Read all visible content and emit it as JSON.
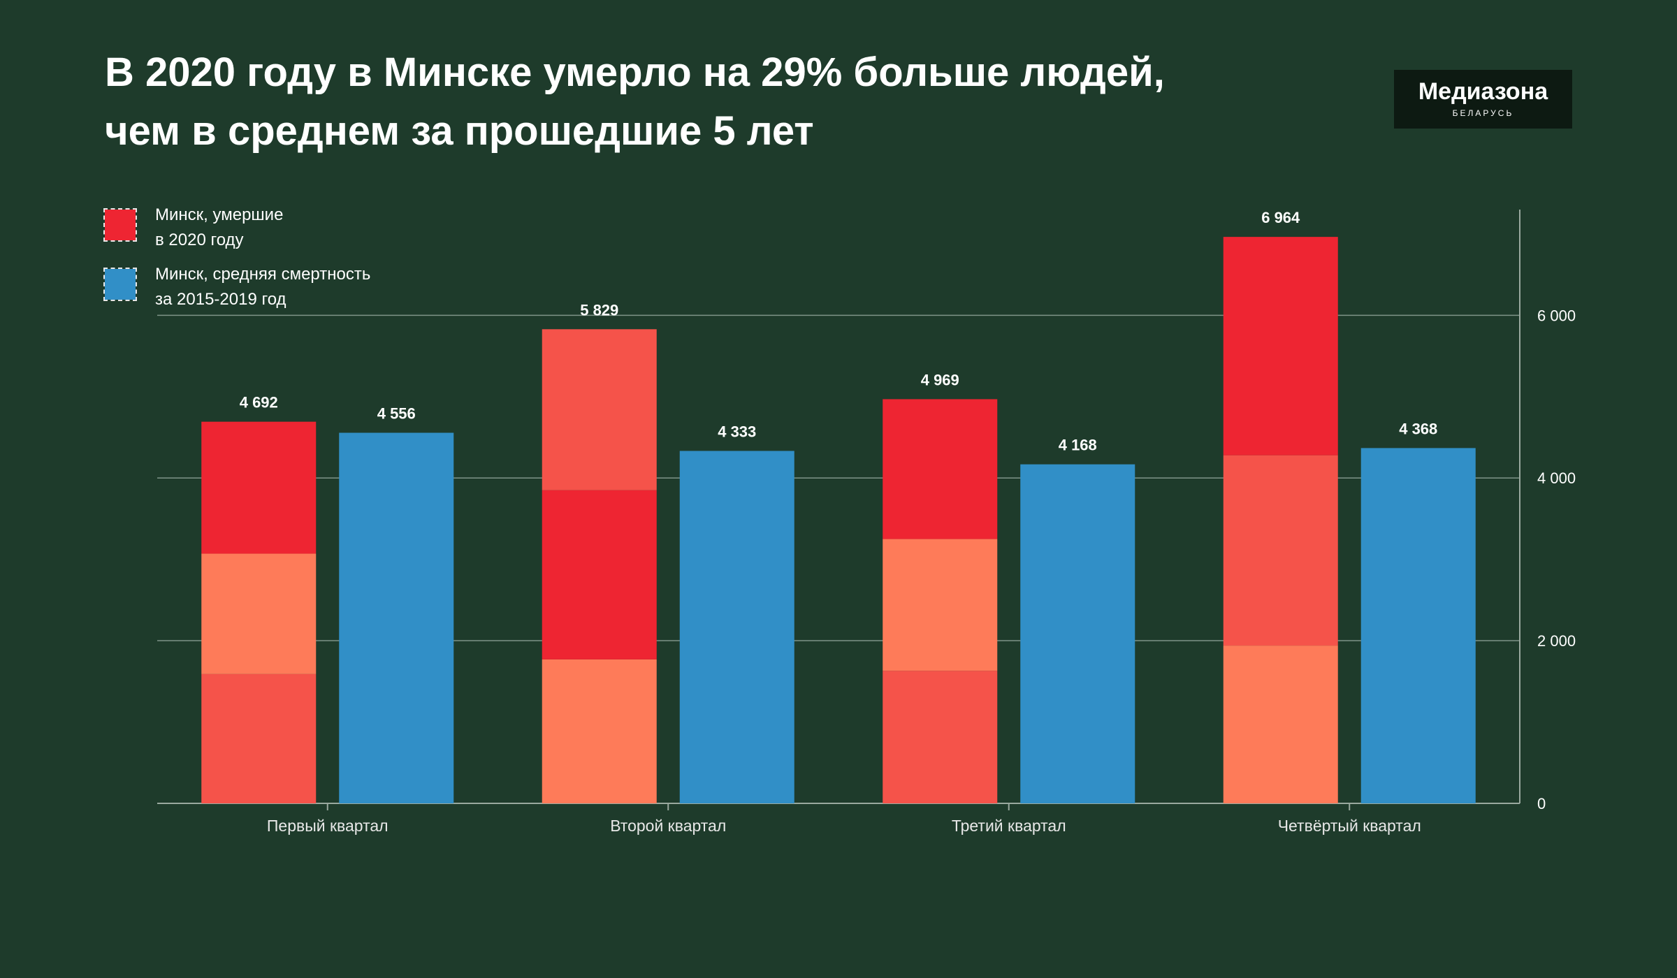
{
  "title": {
    "line1": "В 2020 году в Минске умерло на 29% больше людей,",
    "line2": "чем в среднем за прошедшие 5 лет"
  },
  "logo": {
    "name": "Медиазона",
    "subtitle": "БЕЛАРУСЬ"
  },
  "legend": [
    {
      "line1": "Минск, умершие",
      "line2": "в 2020 году",
      "color": "#ee2532"
    },
    {
      "line1": "Минск, средняя смертность",
      "line2": "за 2015-2019 год",
      "color": "#318fc7"
    }
  ],
  "colors": {
    "background": "#1e3b2b",
    "red_dark": "#ee2532",
    "red_mid": "#f5534a",
    "orange": "#fe7b59",
    "blue": "#318fc7"
  },
  "chart_data": {
    "type": "bar",
    "categories": [
      "Первый квартал",
      "Второй квартал",
      "Третий квартал",
      "Четвёртый квартал"
    ],
    "ylim": [
      0,
      7300
    ],
    "yticks": [
      0,
      2000,
      4000,
      6000
    ],
    "ytick_labels": [
      "0",
      "2 000",
      "4 000",
      "6 000"
    ],
    "grid": true,
    "y_axis_position": "right",
    "series": [
      {
        "name": "Минск, умершие в 2020 году",
        "values": [
          4692,
          5829,
          4969,
          6964
        ],
        "value_labels": [
          "4 692",
          "5 829",
          "4 969",
          "6 964"
        ],
        "stacked_segments": [
          [
            {
              "value": 1590,
              "color": "#f5534a"
            },
            {
              "value": 1480,
              "color": "#fe7b59"
            },
            {
              "value": 1622,
              "color": "#ee2532"
            }
          ],
          [
            {
              "value": 1770,
              "color": "#fe7b59"
            },
            {
              "value": 2080,
              "color": "#ee2532"
            },
            {
              "value": 1979,
              "color": "#f5534a"
            }
          ],
          [
            {
              "value": 1630,
              "color": "#f5534a"
            },
            {
              "value": 1620,
              "color": "#fe7b59"
            },
            {
              "value": 1719,
              "color": "#ee2532"
            }
          ],
          [
            {
              "value": 1940,
              "color": "#fe7b59"
            },
            {
              "value": 2340,
              "color": "#f5534a"
            },
            {
              "value": 2684,
              "color": "#ee2532"
            }
          ]
        ]
      },
      {
        "name": "Минск, средняя смертность за 2015-2019 год",
        "values": [
          4556,
          4333,
          4168,
          4368
        ],
        "value_labels": [
          "4 556",
          "4 333",
          "4 168",
          "4 368"
        ],
        "color": "#318fc7"
      }
    ]
  }
}
